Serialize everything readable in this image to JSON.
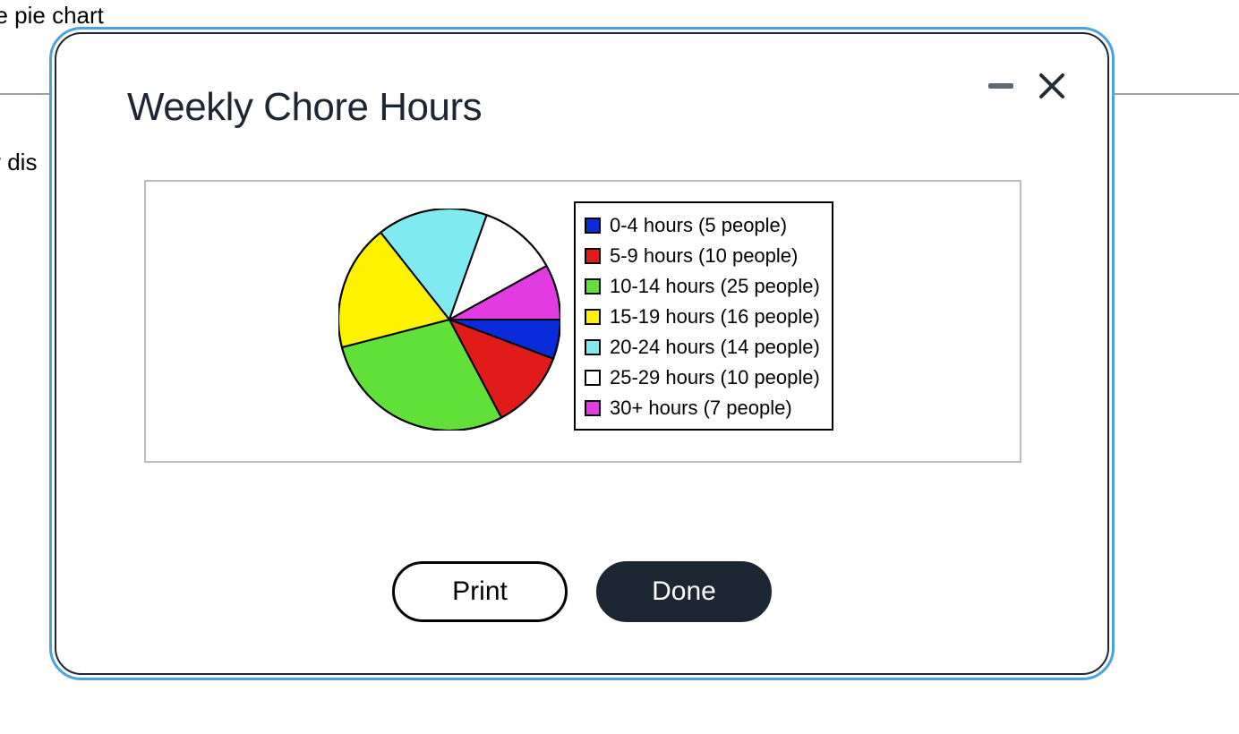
{
  "background": {
    "text_top": "he pie chart",
    "text_mid": "y dis",
    "rule_color": "#9aa0a6"
  },
  "modal": {
    "title": "Weekly Chore Hours",
    "border_outer_color": "#4aa3df",
    "border_inner_color": "#1d2733",
    "background_color": "#ffffff",
    "title_color": "#1d2733",
    "title_fontsize": 44
  },
  "window_controls": {
    "minimize_color": "#5f6771",
    "close_color": "#262c33"
  },
  "chart": {
    "type": "pie",
    "card_border_color": "#b9bcc0",
    "card_background": "#ffffff",
    "pie": {
      "radius": 124,
      "stroke_color": "#000000",
      "stroke_width": 2,
      "total": 87,
      "start_angle_deg": 0,
      "direction": "clockwise",
      "slices": [
        {
          "label": "0-4 hours (5 people)",
          "value": 5,
          "color": "#0a2bd9"
        },
        {
          "label": "5-9 hours (10 people)",
          "value": 10,
          "color": "#e11a1a"
        },
        {
          "label": "10-14 hours (25 people)",
          "value": 25,
          "color": "#62e03a"
        },
        {
          "label": "15-19 hours (16 people)",
          "value": 16,
          "color": "#fff200"
        },
        {
          "label": "20-24 hours (14 people)",
          "value": 14,
          "color": "#7feaf0"
        },
        {
          "label": "25-29 hours (10 people)",
          "value": 10,
          "color": "#ffffff"
        },
        {
          "label": "30+ hours (7 people)",
          "value": 7,
          "color": "#e23be2"
        }
      ]
    },
    "legend": {
      "border_color": "#000000",
      "swatch_border_color": "#000000",
      "fontsize": 22,
      "text_color": "#000000"
    }
  },
  "buttons": {
    "print_label": "Print",
    "done_label": "Done",
    "outline_border": "#000000",
    "solid_bg": "#1d2733",
    "solid_fg": "#ffffff",
    "fontsize": 30
  }
}
